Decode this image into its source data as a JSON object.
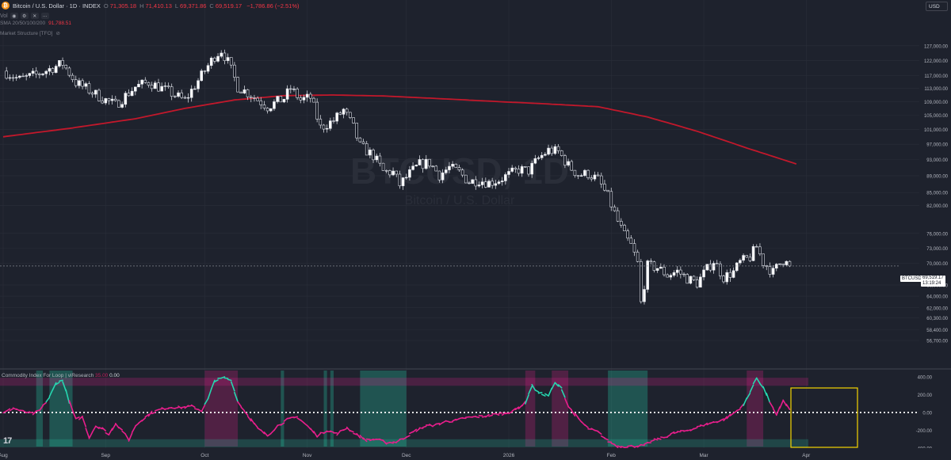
{
  "header": {
    "title": "Bitcoin / U.S. Dollar · 1D · INDEX",
    "ohlc": [
      {
        "k": "O",
        "v": "71,305.18"
      },
      {
        "k": "H",
        "v": "71,410.13"
      },
      {
        "k": "L",
        "v": "69,371.86"
      },
      {
        "k": "C",
        "v": "69,519.17"
      },
      {
        "k": "",
        "v": "−1,786.86 (−2.51%)"
      }
    ],
    "vol_label": "Vol",
    "currency": "USD"
  },
  "indicators": {
    "sma_label": "SMA 20/50/100/200",
    "sma_value": "91,788.51",
    "market_structure_label": "Market Structure [TFO]"
  },
  "watermark": {
    "symbol": "BTCUSD, 1D",
    "name": "Bitcoin / U.S. Dollar"
  },
  "price_label": {
    "symbol": "BTCUSD",
    "price": "69,519.17",
    "countdown": "13:19:24"
  },
  "oscillator": {
    "title": "Commodity Index For Loop | viResearch",
    "value_a": "35.00",
    "value_b": "0.00",
    "yticks": [
      400,
      200,
      0,
      -200,
      -400
    ],
    "ytick_labels": [
      "400.00",
      "200.00",
      "0.00",
      "-200.00",
      "-400.00"
    ]
  },
  "colors": {
    "bg": "#1e222d",
    "sma": "#c2182b",
    "candle_up": "#ffffff",
    "candle_down": "#ffffff",
    "osc_bull": "#26d7b0",
    "osc_bear": "#e91e8c",
    "highlight": "#f5d400"
  },
  "chart_data": {
    "type": "candlestick",
    "price_scale": "log",
    "ylim": [
      56700,
      132000
    ],
    "yticks": [
      127000,
      122000,
      117000,
      113000,
      109000,
      105000,
      101000,
      97000,
      93000,
      89000,
      85000,
      82000,
      76000,
      73000,
      70000,
      66000,
      64000,
      62000,
      60300,
      58400,
      56700
    ],
    "ytick_labels": [
      "127,000.00",
      "122,000.00",
      "117,000.00",
      "113,000.00",
      "109,000.00",
      "105,000.00",
      "101,000.00",
      "97,000.00",
      "93,000.00",
      "89,000.00",
      "85,000.00",
      "82,000.00",
      "76,000.00",
      "73,000.00",
      "70,000.00",
      "66,000.00",
      "64,000.00",
      "62,000.00",
      "60,300.00",
      "58,400.00",
      "56,700.00"
    ],
    "x_labels": [
      "Aug",
      "Sep",
      "Oct",
      "Nov",
      "Dec",
      "2026",
      "Feb",
      "Mar",
      "Apr"
    ],
    "x_label_days": [
      0,
      31,
      61,
      92,
      122,
      153,
      184,
      212,
      243
    ],
    "start_date": "2025-07-28",
    "last_price": 69519.17,
    "anchors": [
      [
        0,
        118500
      ],
      [
        5,
        115800
      ],
      [
        10,
        117300
      ],
      [
        18,
        121000
      ],
      [
        22,
        114800
      ],
      [
        30,
        110000
      ],
      [
        34,
        108000
      ],
      [
        40,
        113500
      ],
      [
        44,
        115000
      ],
      [
        50,
        112000
      ],
      [
        55,
        109300
      ],
      [
        60,
        117000
      ],
      [
        64,
        123500
      ],
      [
        66,
        125500
      ],
      [
        68,
        121500
      ],
      [
        71,
        113500
      ],
      [
        75,
        111000
      ],
      [
        80,
        107500
      ],
      [
        85,
        110000
      ],
      [
        87,
        113000
      ],
      [
        90,
        109500
      ],
      [
        93,
        110200
      ],
      [
        96,
        101500
      ],
      [
        100,
        103500
      ],
      [
        103,
        106500
      ],
      [
        106,
        101500
      ],
      [
        108,
        96500
      ],
      [
        112,
        94000
      ],
      [
        115,
        90000
      ],
      [
        118,
        89800
      ],
      [
        120,
        86800
      ],
      [
        123,
        89500
      ],
      [
        126,
        91800
      ],
      [
        129,
        92200
      ],
      [
        132,
        89200
      ],
      [
        135,
        91000
      ],
      [
        138,
        89800
      ],
      [
        141,
        87500
      ],
      [
        144,
        88000
      ],
      [
        147,
        87300
      ],
      [
        150,
        88000
      ],
      [
        153,
        89200
      ],
      [
        156,
        90500
      ],
      [
        159,
        90200
      ],
      [
        162,
        93300
      ],
      [
        165,
        95400
      ],
      [
        168,
        95000
      ],
      [
        171,
        91500
      ],
      [
        174,
        89200
      ],
      [
        177,
        89500
      ],
      [
        180,
        88000
      ],
      [
        183,
        84000
      ],
      [
        186,
        78500
      ],
      [
        188,
        75500
      ],
      [
        190,
        73500
      ],
      [
        192,
        70000
      ],
      [
        193,
        62800
      ],
      [
        195,
        69500
      ],
      [
        198,
        69200
      ],
      [
        201,
        67800
      ],
      [
        204,
        68500
      ],
      [
        207,
        67200
      ],
      [
        210,
        66300
      ],
      [
        212,
        68100
      ],
      [
        215,
        70500
      ],
      [
        218,
        67400
      ],
      [
        221,
        68400
      ],
      [
        223,
        70200
      ],
      [
        226,
        71200
      ],
      [
        228,
        73300
      ],
      [
        230,
        70200
      ],
      [
        233,
        68300
      ],
      [
        235,
        70000
      ],
      [
        237,
        71200
      ],
      [
        238,
        69519
      ]
    ],
    "sma200_anchors": [
      [
        0,
        99000
      ],
      [
        20,
        101300
      ],
      [
        40,
        104000
      ],
      [
        55,
        107000
      ],
      [
        70,
        109500
      ],
      [
        85,
        110800
      ],
      [
        100,
        111000
      ],
      [
        115,
        110700
      ],
      [
        130,
        110000
      ],
      [
        150,
        109000
      ],
      [
        165,
        108300
      ],
      [
        180,
        107500
      ],
      [
        195,
        104500
      ],
      [
        210,
        100500
      ],
      [
        225,
        96000
      ],
      [
        240,
        91900
      ]
    ],
    "osc_anchors": [
      [
        0,
        -10
      ],
      [
        3,
        50
      ],
      [
        6,
        10
      ],
      [
        9,
        -15
      ],
      [
        11,
        20
      ],
      [
        14,
        170
      ],
      [
        16,
        330
      ],
      [
        18,
        360
      ],
      [
        20,
        120
      ],
      [
        22,
        -80
      ],
      [
        24,
        -50
      ],
      [
        26,
        -280
      ],
      [
        28,
        -150
      ],
      [
        30,
        -180
      ],
      [
        32,
        -250
      ],
      [
        34,
        -120
      ],
      [
        36,
        -200
      ],
      [
        38,
        -310
      ],
      [
        40,
        -150
      ],
      [
        42,
        -80
      ],
      [
        45,
        0
      ],
      [
        48,
        40
      ],
      [
        51,
        60
      ],
      [
        54,
        55
      ],
      [
        57,
        70
      ],
      [
        60,
        20
      ],
      [
        62,
        150
      ],
      [
        64,
        360
      ],
      [
        67,
        390
      ],
      [
        69,
        360
      ],
      [
        71,
        120
      ],
      [
        74,
        -30
      ],
      [
        77,
        -180
      ],
      [
        80,
        -260
      ],
      [
        83,
        -150
      ],
      [
        86,
        -80
      ],
      [
        89,
        -50
      ],
      [
        92,
        -150
      ],
      [
        95,
        -260
      ],
      [
        98,
        -200
      ],
      [
        101,
        -240
      ],
      [
        104,
        -170
      ],
      [
        107,
        -250
      ],
      [
        110,
        -310
      ],
      [
        113,
        -300
      ],
      [
        116,
        -340
      ],
      [
        119,
        -330
      ],
      [
        122,
        -270
      ],
      [
        125,
        -200
      ],
      [
        128,
        -150
      ],
      [
        131,
        -140
      ],
      [
        134,
        -100
      ],
      [
        137,
        -90
      ],
      [
        140,
        -60
      ],
      [
        143,
        -50
      ],
      [
        146,
        -40
      ],
      [
        149,
        -20
      ],
      [
        152,
        -10
      ],
      [
        155,
        30
      ],
      [
        158,
        110
      ],
      [
        160,
        300
      ],
      [
        162,
        220
      ],
      [
        165,
        190
      ],
      [
        167,
        330
      ],
      [
        169,
        270
      ],
      [
        171,
        70
      ],
      [
        174,
        -70
      ],
      [
        177,
        -180
      ],
      [
        180,
        -220
      ],
      [
        183,
        -320
      ],
      [
        186,
        -380
      ],
      [
        190,
        -380
      ],
      [
        194,
        -370
      ],
      [
        197,
        -310
      ],
      [
        200,
        -280
      ],
      [
        203,
        -230
      ],
      [
        206,
        -210
      ],
      [
        209,
        -180
      ],
      [
        212,
        -140
      ],
      [
        215,
        -110
      ],
      [
        218,
        -80
      ],
      [
        221,
        -10
      ],
      [
        224,
        80
      ],
      [
        226,
        230
      ],
      [
        228,
        390
      ],
      [
        230,
        280
      ],
      [
        232,
        120
      ],
      [
        234,
        -40
      ],
      [
        236,
        140
      ],
      [
        238,
        30
      ]
    ],
    "bands": [
      {
        "from": 10,
        "to": 12,
        "kind": "bull"
      },
      {
        "from": 14,
        "to": 21,
        "kind": "bull"
      },
      {
        "from": 61,
        "to": 71,
        "kind": "bear"
      },
      {
        "from": 84,
        "to": 85,
        "kind": "bull"
      },
      {
        "from": 97,
        "to": 98,
        "kind": "bull"
      },
      {
        "from": 99,
        "to": 100,
        "kind": "bull"
      },
      {
        "from": 108,
        "to": 122,
        "kind": "bull"
      },
      {
        "from": 158,
        "to": 161,
        "kind": "bear"
      },
      {
        "from": 166,
        "to": 171,
        "kind": "bear"
      },
      {
        "from": 183,
        "to": 195,
        "kind": "bull"
      },
      {
        "from": 225,
        "to": 230,
        "kind": "bear"
      }
    ],
    "levels": {
      "upper": 300,
      "lower": -300
    }
  }
}
